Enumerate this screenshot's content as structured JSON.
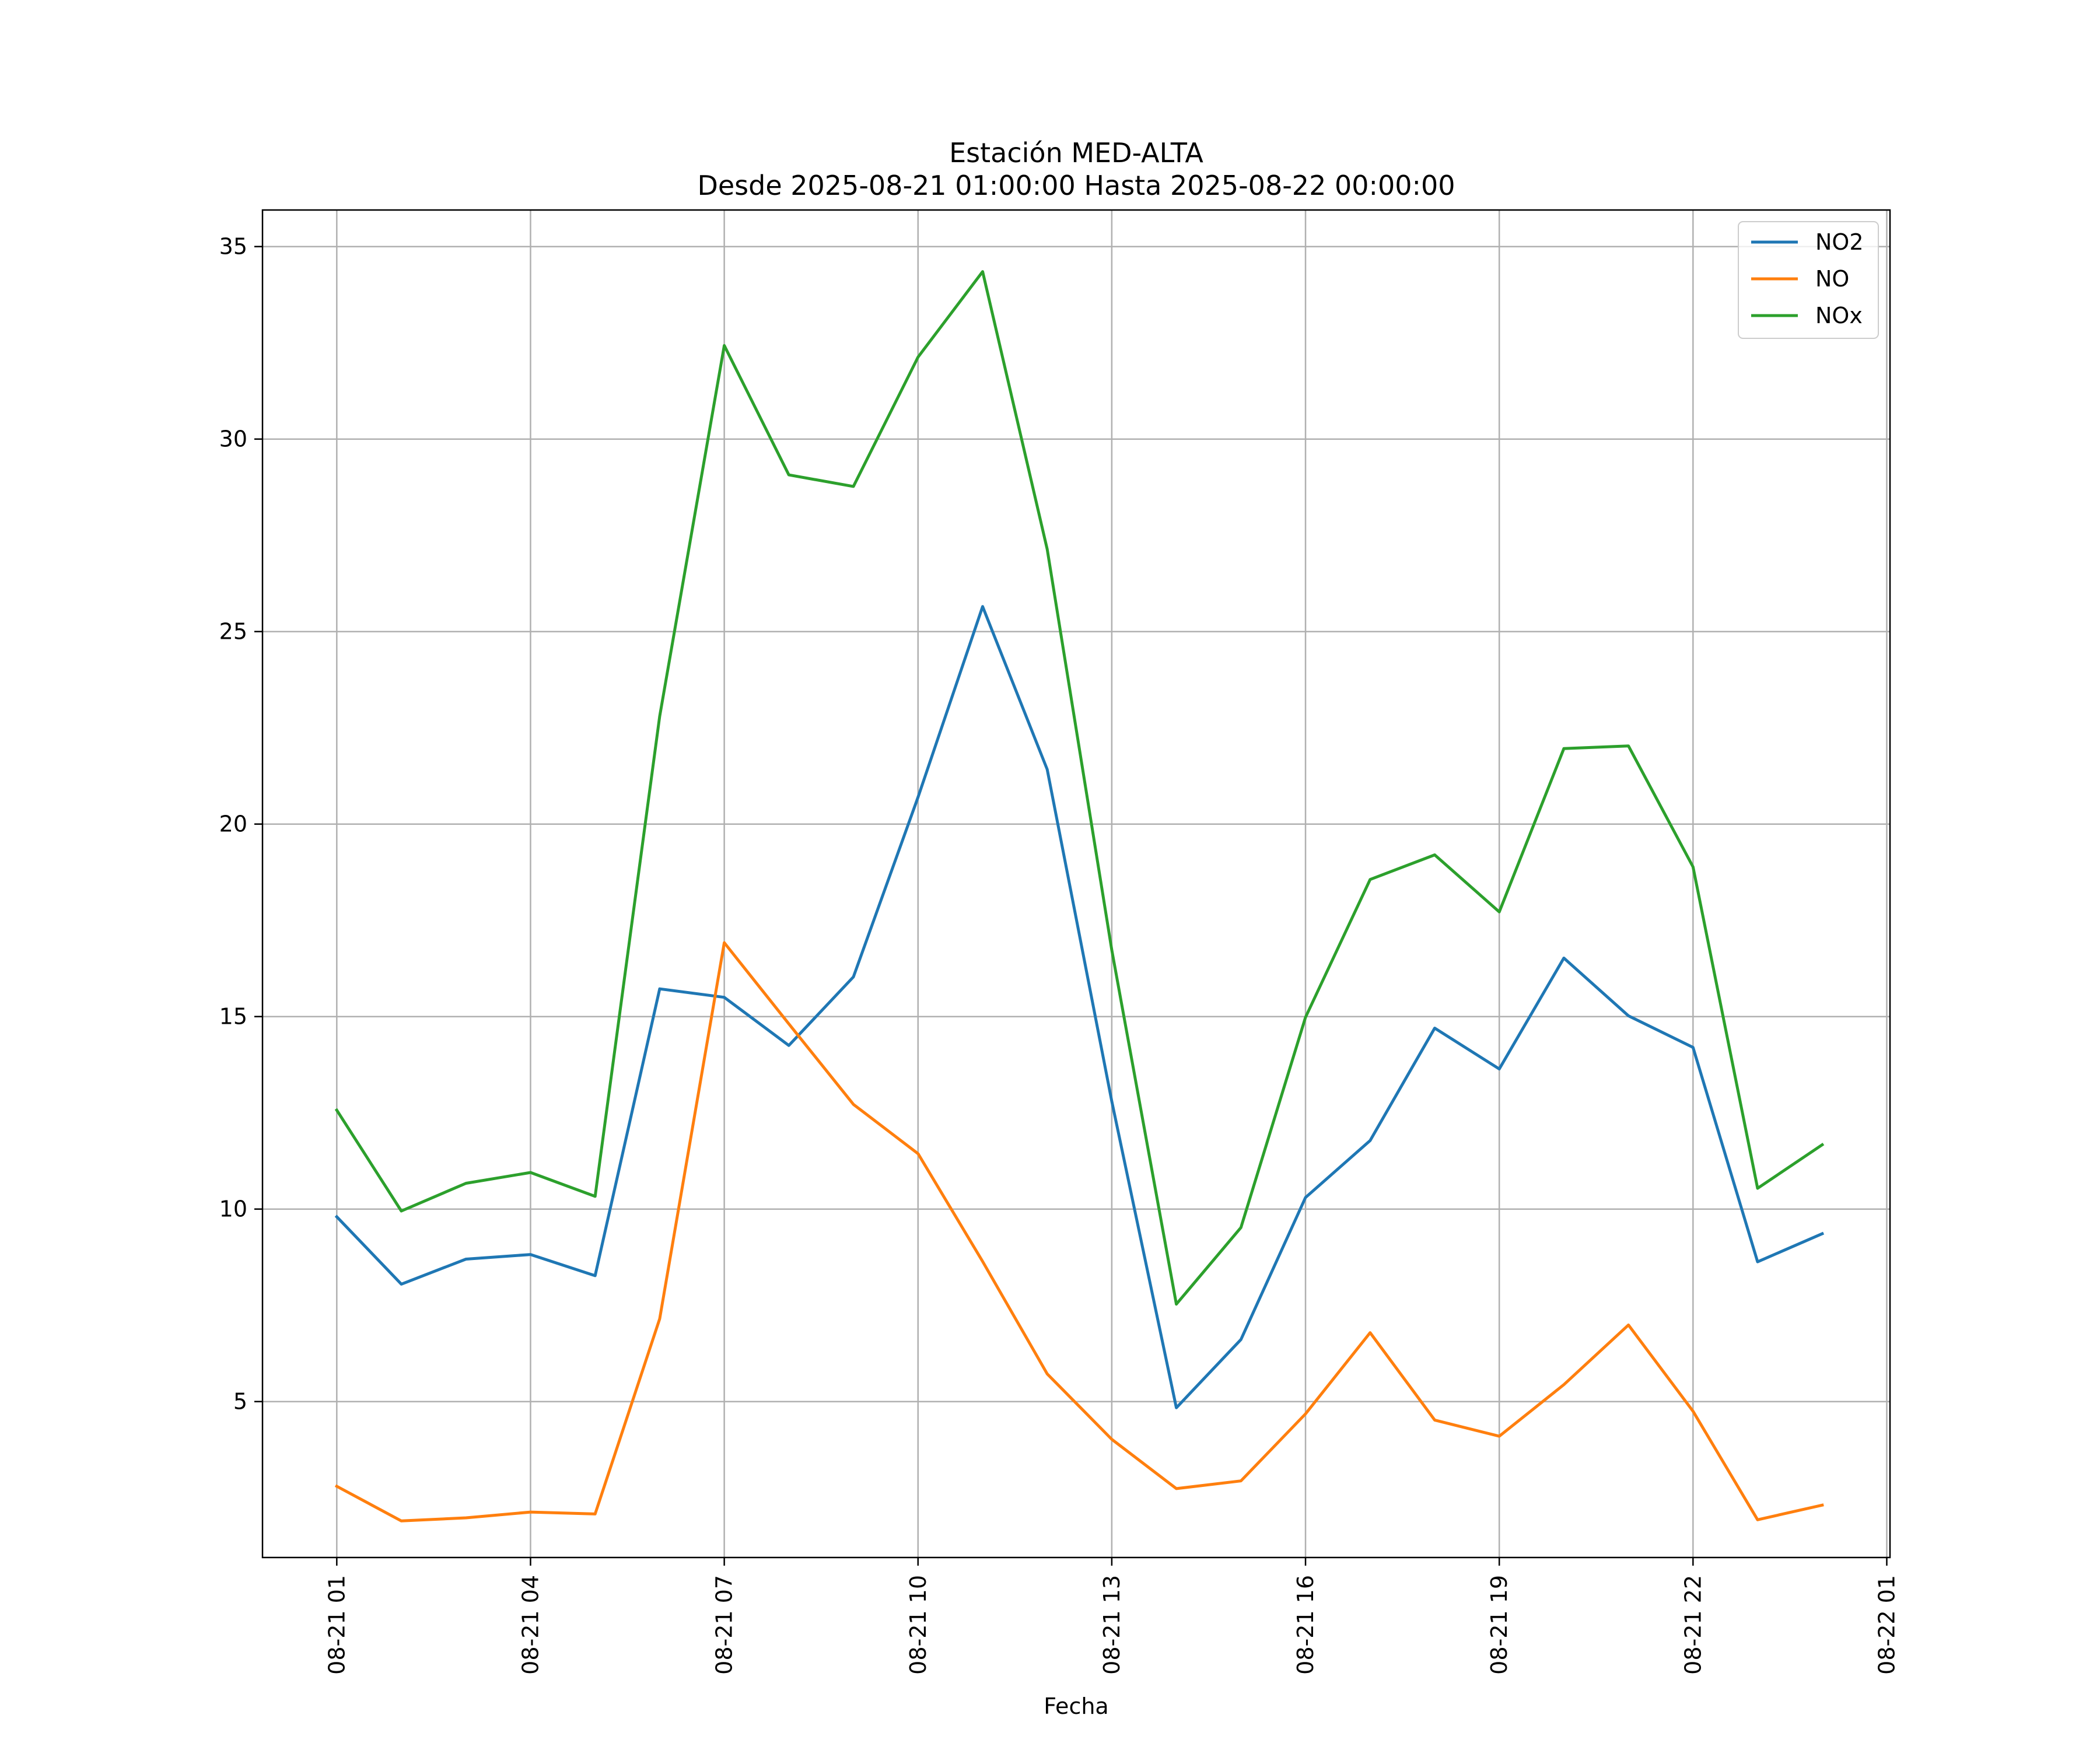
{
  "chart_data": {
    "type": "line",
    "title": "Estación MED-ALTA",
    "subtitle": "Desde 2025-08-21 01:00:00 Hasta 2025-08-22 00:00:00",
    "xlabel": "Fecha",
    "ylabel": "",
    "x_hours": [
      1,
      2,
      3,
      4,
      5,
      6,
      7,
      8,
      9,
      10,
      11,
      12,
      13,
      14,
      15,
      16,
      17,
      18,
      19,
      20,
      21,
      22,
      23,
      24
    ],
    "xlim": [
      -0.15,
      25.05
    ],
    "ylim": [
      0.95,
      35.95
    ],
    "x_ticks": [
      {
        "value": 1,
        "label": "08-21 01"
      },
      {
        "value": 4,
        "label": "08-21 04"
      },
      {
        "value": 7,
        "label": "08-21 07"
      },
      {
        "value": 10,
        "label": "08-21 10"
      },
      {
        "value": 13,
        "label": "08-21 13"
      },
      {
        "value": 16,
        "label": "08-21 16"
      },
      {
        "value": 19,
        "label": "08-21 19"
      },
      {
        "value": 22,
        "label": "08-21 22"
      },
      {
        "value": 25,
        "label": "08-22 01"
      }
    ],
    "y_ticks": [
      {
        "value": 5,
        "label": "5"
      },
      {
        "value": 10,
        "label": "10"
      },
      {
        "value": 15,
        "label": "15"
      },
      {
        "value": 20,
        "label": "20"
      },
      {
        "value": 25,
        "label": "25"
      },
      {
        "value": 30,
        "label": "30"
      },
      {
        "value": 35,
        "label": "35"
      }
    ],
    "grid": true,
    "legend_position": "top-right",
    "series": [
      {
        "name": "NO2",
        "color": "#1f77b4",
        "values": [
          9.8,
          8.05,
          8.7,
          8.82,
          8.27,
          15.72,
          15.5,
          14.25,
          16.03,
          20.7,
          25.65,
          21.42,
          12.8,
          4.84,
          6.61,
          10.3,
          11.78,
          14.7,
          13.64,
          16.52,
          15.02,
          14.2,
          8.63,
          9.36
        ]
      },
      {
        "name": "NO",
        "color": "#ff7f0e",
        "values": [
          2.8,
          1.9,
          1.98,
          2.13,
          2.08,
          7.15,
          16.92,
          14.81,
          12.72,
          11.44,
          8.64,
          5.72,
          4.02,
          2.74,
          2.94,
          4.68,
          6.79,
          4.52,
          4.1,
          5.44,
          6.99,
          4.75,
          1.93,
          2.31
        ]
      },
      {
        "name": "NOx",
        "color": "#2ca02c",
        "values": [
          12.57,
          9.95,
          10.67,
          10.95,
          10.33,
          22.8,
          32.43,
          29.07,
          28.77,
          32.13,
          34.35,
          27.14,
          16.73,
          7.53,
          9.52,
          14.98,
          18.56,
          19.2,
          17.72,
          21.96,
          22.03,
          18.89,
          10.54,
          11.67
        ]
      }
    ]
  }
}
